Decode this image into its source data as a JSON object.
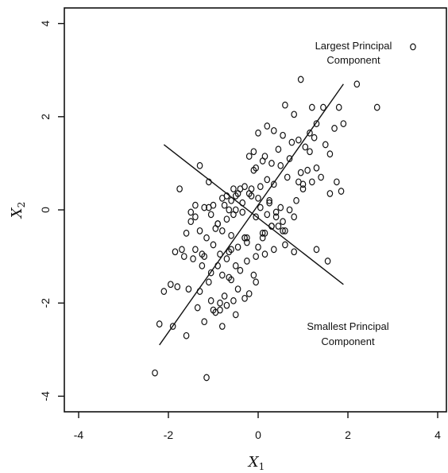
{
  "chart_data": {
    "type": "scatter",
    "title": "",
    "xlabel": "X",
    "xlabel_sub": "1",
    "ylabel": "X",
    "ylabel_sub": "2",
    "xlim": [
      -4.4,
      4.3
    ],
    "ylim": [
      -4.4,
      4.4
    ],
    "xticks": [
      -4,
      -2,
      0,
      2,
      4
    ],
    "xtick_labels": [
      "-4",
      "-2",
      "0",
      "2",
      "4"
    ],
    "yticks": [
      -4,
      -2,
      0,
      2,
      4
    ],
    "ytick_labels": [
      "-4",
      "-2",
      "0",
      "2",
      "4"
    ],
    "grid": false,
    "annotations": [
      {
        "text_lines": [
          "Largest Principal",
          "Component"
        ],
        "x": 2.0,
        "y": 3.5
      },
      {
        "text_lines": [
          "Smallest Principal",
          "Component"
        ],
        "x": 2.0,
        "y": -2.6
      }
    ],
    "lines": [
      {
        "name": "Largest Principal Component",
        "x": [
          -2.2,
          1.9
        ],
        "y": [
          -2.9,
          2.7
        ]
      },
      {
        "name": "Smallest Principal Component",
        "x": [
          -2.1,
          1.9
        ],
        "y": [
          1.4,
          -1.6
        ]
      }
    ],
    "series": [
      {
        "x": [
          3.45,
          2.2,
          0.95,
          2.65,
          1.8,
          1.9,
          1.45,
          1.2,
          1.3,
          0.6,
          0.8,
          0.2,
          0.0,
          0.35,
          0.55,
          0.9,
          1.05,
          1.15,
          1.25,
          1.5,
          1.7,
          0.75,
          0.45,
          0.15,
          -0.1,
          -0.2,
          0.1,
          0.3,
          0.5,
          0.7,
          0.95,
          1.1,
          1.3,
          1.6,
          0.65,
          0.35,
          0.05,
          -0.15,
          -0.3,
          -0.45,
          -0.6,
          -0.75,
          -0.5,
          -0.2,
          0.0,
          0.25,
          0.5,
          0.85,
          1.0,
          1.2,
          1.4,
          1.75,
          0.4,
          0.2,
          -0.05,
          -0.35,
          -0.55,
          -0.7,
          -0.9,
          -1.05,
          -1.2,
          -1.4,
          -0.8,
          -0.6,
          -0.3,
          0.1,
          0.3,
          0.55,
          0.8,
          1.3,
          1.55,
          0.0,
          -0.25,
          -0.45,
          -0.65,
          -0.85,
          -1.0,
          -1.15,
          -1.3,
          -1.5,
          -1.6,
          -1.7,
          -0.9,
          -0.7,
          -0.5,
          -0.25,
          -0.05,
          0.15,
          0.35,
          0.6,
          -0.1,
          -0.4,
          -0.6,
          -0.8,
          -1.05,
          -1.25,
          -1.45,
          -1.65,
          -1.85,
          -1.95,
          -1.1,
          -0.75,
          -0.45,
          -0.2,
          -0.05,
          -0.3,
          -0.55,
          -0.85,
          -1.0,
          -1.3,
          -1.55,
          -1.8,
          -2.1,
          -1.2,
          -0.95,
          -0.7,
          -0.5,
          -0.8,
          -1.05,
          -1.35,
          -1.6,
          -1.9,
          -2.2,
          -0.85,
          -0.65,
          -1.25,
          -1.4,
          -0.95,
          -2.3,
          -1.15,
          -0.55,
          -1.75,
          -1.4,
          -0.25,
          0.15,
          0.45,
          0.8,
          1.0,
          -0.1,
          0.25,
          -0.5,
          -0.8,
          -1.1,
          -1.3,
          -1.5,
          -1.1,
          -0.35,
          -0.15,
          0.05,
          0.55,
          0.7,
          1.85,
          1.15,
          0.9,
          0.4,
          0.6,
          -0.65,
          -0.9,
          -0.3,
          -0.05,
          0.2,
          -0.7,
          -0.4,
          -1.0,
          -1.2,
          -0.6,
          0.1,
          0.3,
          1.6
        ],
        "y": [
          3.5,
          2.7,
          2.8,
          2.2,
          2.2,
          1.85,
          2.2,
          2.2,
          1.85,
          2.25,
          2.05,
          1.8,
          1.65,
          1.7,
          1.6,
          1.5,
          1.35,
          1.25,
          1.55,
          1.4,
          1.75,
          1.45,
          1.3,
          1.15,
          1.25,
          1.15,
          1.05,
          1.0,
          0.95,
          1.1,
          0.8,
          0.85,
          0.9,
          1.2,
          0.7,
          0.55,
          0.5,
          0.45,
          0.5,
          0.35,
          0.2,
          0.1,
          0.3,
          0.35,
          0.25,
          0.15,
          0.05,
          0.2,
          0.45,
          0.6,
          0.7,
          0.6,
          -0.05,
          -0.1,
          -0.15,
          -0.05,
          -0.1,
          -0.2,
          -0.3,
          -0.1,
          0.05,
          0.1,
          -0.45,
          -0.55,
          -0.6,
          -0.5,
          -0.35,
          -0.25,
          -0.15,
          -0.85,
          -1.1,
          -0.8,
          -0.7,
          -0.8,
          -0.9,
          -0.95,
          -0.75,
          -0.6,
          -0.45,
          -0.25,
          -0.5,
          -0.85,
          -1.2,
          -1.05,
          -1.2,
          -1.1,
          -1.0,
          -0.95,
          -0.85,
          -0.75,
          -1.4,
          -1.3,
          -1.5,
          -1.4,
          -1.35,
          -1.2,
          -1.05,
          -1.0,
          -0.9,
          -1.6,
          -1.55,
          -1.85,
          -1.7,
          -1.8,
          -1.55,
          -1.9,
          -1.95,
          -2.0,
          -2.15,
          -1.75,
          -1.7,
          -1.65,
          -1.75,
          -2.4,
          -2.2,
          -2.05,
          -2.25,
          -2.5,
          -1.95,
          -2.1,
          -2.7,
          -2.5,
          -2.45,
          -2.15,
          -1.45,
          -0.95,
          -0.85,
          -0.4,
          -3.5,
          -3.6,
          0.45,
          0.45,
          -0.15,
          -0.6,
          -0.5,
          -0.35,
          -0.9,
          0.55,
          0.85,
          0.2,
          0.0,
          0.25,
          0.6,
          0.95,
          -0.05,
          0.05,
          0.15,
          0.3,
          0.05,
          -0.45,
          0.0,
          0.4,
          1.65,
          0.6,
          -0.15,
          -0.45,
          0.0,
          -0.3,
          -0.6,
          0.9,
          0.65,
          0.3,
          0.45,
          0.1,
          -1.0,
          -0.85,
          -0.6,
          -0.35,
          0.35
        ]
      }
    ]
  }
}
